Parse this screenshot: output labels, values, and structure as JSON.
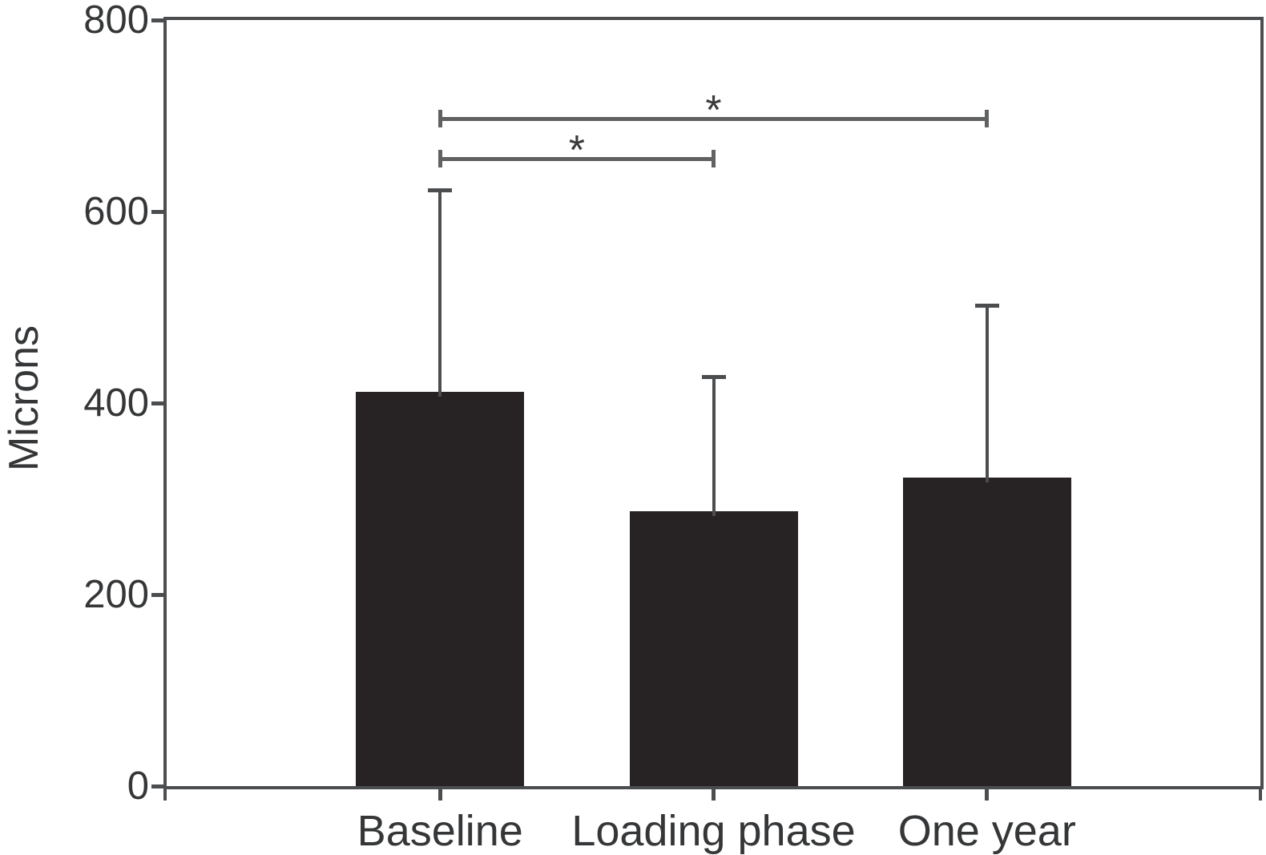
{
  "figure": {
    "background": "#ffffff"
  },
  "chart_data": {
    "type": "bar",
    "title": "",
    "xlabel": "",
    "ylabel": "Microns",
    "categories": [
      "Baseline",
      "Loading phase",
      "One year"
    ],
    "values": [
      412,
      287,
      322
    ],
    "error_upper": [
      211,
      141,
      180
    ],
    "ylim": [
      0,
      800
    ],
    "yticks": [
      0,
      200,
      400,
      600,
      800
    ],
    "grid": false,
    "legend": "none",
    "bar_color": "#272324",
    "axis_color": "#4b4d4f",
    "line_color": "#5f6163",
    "text_color": "#343638",
    "significance_brackets": [
      {
        "from": "Baseline",
        "to": "One year",
        "label": "*",
        "y_value": 697
      },
      {
        "from": "Baseline",
        "to": "Loading phase",
        "label": "*",
        "y_value": 655
      }
    ]
  }
}
